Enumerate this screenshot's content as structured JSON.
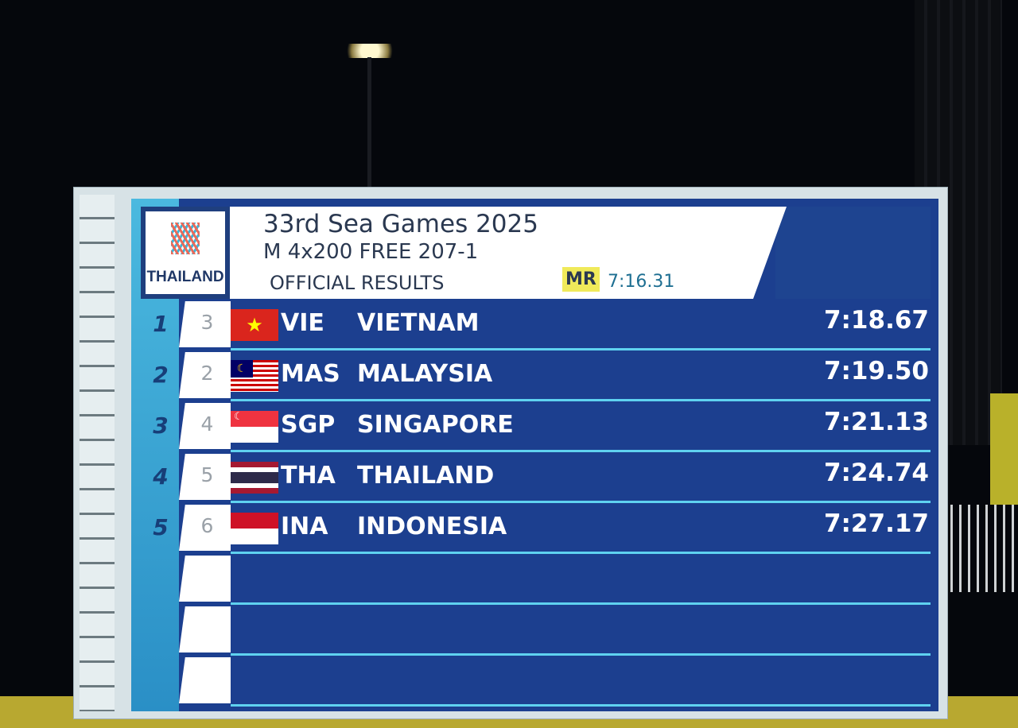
{
  "logo": {
    "text": "THAILAND",
    "year": "2025"
  },
  "header": {
    "title": "33rd Sea Games 2025",
    "event": "M 4x200 FREE 207-1",
    "status": "OFFICIAL RESULTS",
    "record_label": "MR",
    "record_time": "7:16.31"
  },
  "colors": {
    "screen": "#1c3f8f",
    "accent": "#4bb9df",
    "record_badge": "#f0ea5a"
  },
  "results": [
    {
      "rank": "1",
      "lane": "3",
      "code": "VIE",
      "country": "VIETNAM",
      "time": "7:18.67",
      "flag": "vietnam-flag"
    },
    {
      "rank": "2",
      "lane": "2",
      "code": "MAS",
      "country": "MALAYSIA",
      "time": "7:19.50",
      "flag": "malaysia-flag"
    },
    {
      "rank": "3",
      "lane": "4",
      "code": "SGP",
      "country": "SINGAPORE",
      "time": "7:21.13",
      "flag": "singapore-flag"
    },
    {
      "rank": "4",
      "lane": "5",
      "code": "THA",
      "country": "THAILAND",
      "time": "7:24.74",
      "flag": "thailand-flag"
    },
    {
      "rank": "5",
      "lane": "6",
      "code": "INA",
      "country": "INDONESIA",
      "time": "7:27.17",
      "flag": "indonesia-flag"
    }
  ]
}
